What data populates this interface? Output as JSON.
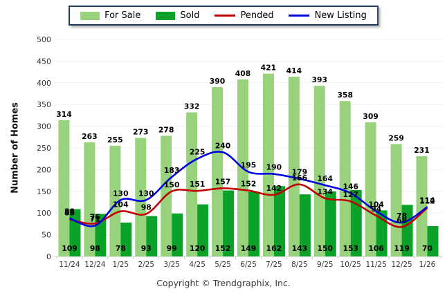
{
  "legend": {
    "items": [
      "For Sale",
      "Sold",
      "Pended",
      "New Listing"
    ]
  },
  "colors": {
    "for_sale": "#98D27D",
    "sold": "#0AA228",
    "pended": "#C00000",
    "new_listing": "#0000E6",
    "grid": "#F3EFF0",
    "axis_line": "#CCCCCC",
    "legend_border": "#1B3A5C"
  },
  "footer": {
    "copyright": "Copyright © Trendgraphix, Inc."
  },
  "chart_data": {
    "type": "bar",
    "subtype": "grouped-bars-with-smooth-lines",
    "title": "",
    "xlabel": "",
    "ylabel": "Number of Homes",
    "ylim": [
      0,
      500
    ],
    "ytick_step": 50,
    "grid": true,
    "legend_position": "top",
    "categories": [
      "11/24",
      "12/24",
      "1/25",
      "2/25",
      "3/25",
      "4/25",
      "5/25",
      "6/25",
      "7/25",
      "8/25",
      "9/25",
      "10/25",
      "11/25",
      "12/25",
      "1/26"
    ],
    "series": [
      {
        "name": "For Sale",
        "render": "bar",
        "color_key": "for_sale",
        "values": [
          314,
          263,
          255,
          273,
          278,
          332,
          390,
          408,
          421,
          414,
          393,
          358,
          309,
          259,
          231
        ]
      },
      {
        "name": "Sold",
        "render": "bar",
        "color_key": "sold",
        "values": [
          109,
          98,
          78,
          93,
          99,
          120,
          152,
          149,
          162,
          143,
          150,
          153,
          106,
          119,
          70
        ]
      },
      {
        "name": "Pended",
        "render": "line",
        "color_key": "pended",
        "values": [
          85,
          76,
          104,
          98,
          150,
          151,
          157,
          152,
          142,
          166,
          134,
          127,
          94,
          68,
          112
        ]
      },
      {
        "name": "New Listing",
        "render": "line",
        "color_key": "new_listing",
        "values": [
          88,
          71,
          130,
          130,
          183,
          225,
          240,
          195,
          190,
          179,
          164,
          146,
          104,
          78,
          114
        ]
      }
    ]
  }
}
